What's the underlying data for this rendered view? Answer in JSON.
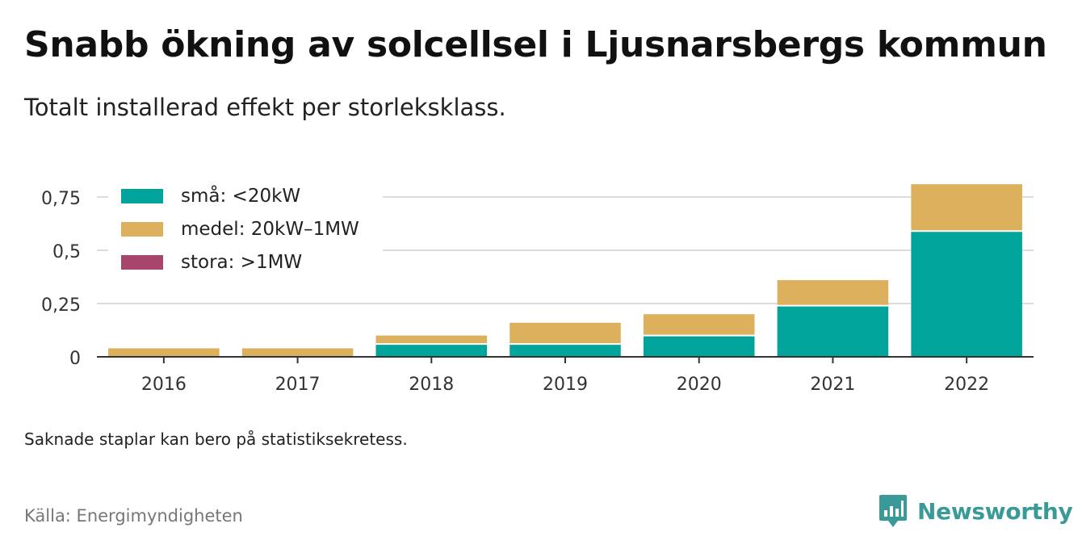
{
  "title": "Snabb ökning av solcellsel i Ljusnarsbergs kommun",
  "subtitle": "Totalt installerad effekt per storleksklass.",
  "note": "Saknade staplar kan bero på statistiksekretess.",
  "source": "Källa: Energimyndigheten",
  "brand": {
    "name": "Newsworthy",
    "icon": "newsworthy-logo-icon",
    "color": "#3a9a98"
  },
  "chart_data": {
    "type": "bar",
    "stacked": true,
    "categories": [
      "2016",
      "2017",
      "2018",
      "2019",
      "2020",
      "2021",
      "2022"
    ],
    "series": [
      {
        "name": "små: <20kW",
        "color": "#00a49a",
        "values": [
          0,
          0,
          0.06,
          0.06,
          0.1,
          0.24,
          0.59
        ]
      },
      {
        "name": "medel: 20kW–1MW",
        "color": "#dcb05c",
        "values": [
          0.04,
          0.04,
          0.04,
          0.1,
          0.1,
          0.12,
          0.22
        ]
      },
      {
        "name": "stora: >1MW",
        "color": "#a8456c",
        "values": [
          0,
          0,
          0,
          0,
          0,
          0,
          0
        ]
      }
    ],
    "y_ticks": [
      {
        "value": 0,
        "label": "0"
      },
      {
        "value": 0.25,
        "label": "0,25"
      },
      {
        "value": 0.5,
        "label": "0,5"
      },
      {
        "value": 0.75,
        "label": "0,75"
      }
    ],
    "ylim": [
      0,
      0.82
    ],
    "grid": true,
    "legend_position": "top-left",
    "xlabel": "",
    "ylabel": ""
  }
}
